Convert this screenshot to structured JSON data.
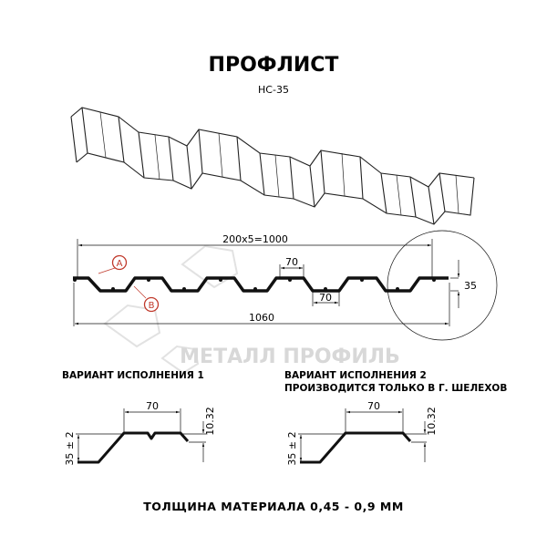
{
  "title": "ПРОФЛИСТ",
  "subtitle": "НС-35",
  "watermark": "МЕТАЛЛ ПРОФИЛЬ",
  "main_profile": {
    "dim_span": "200x5=1000",
    "dim_total": "1060",
    "dim_top_width": "70",
    "dim_bottom_width": "70",
    "dim_height": "35",
    "marker_a": "A",
    "marker_b": "B",
    "marker_color": "#c0392b"
  },
  "variant1": {
    "label": "ВАРИАНТ ИСПОЛНЕНИЯ 1",
    "dim_width": "70",
    "dim_height": "35 ± 2",
    "dim_step": "10.32"
  },
  "variant2": {
    "label_line1": "ВАРИАНТ ИСПОЛНЕНИЯ 2",
    "label_line2": "ПРОИЗВОДИТСЯ ТОЛЬКО В Г. ШЕЛЕХОВ",
    "dim_width": "70",
    "dim_height": "35 ± 2",
    "dim_step": "10.32"
  },
  "footer": "ТОЛЩИНА МАТЕРИАЛА 0,45 - 0,9 ММ"
}
